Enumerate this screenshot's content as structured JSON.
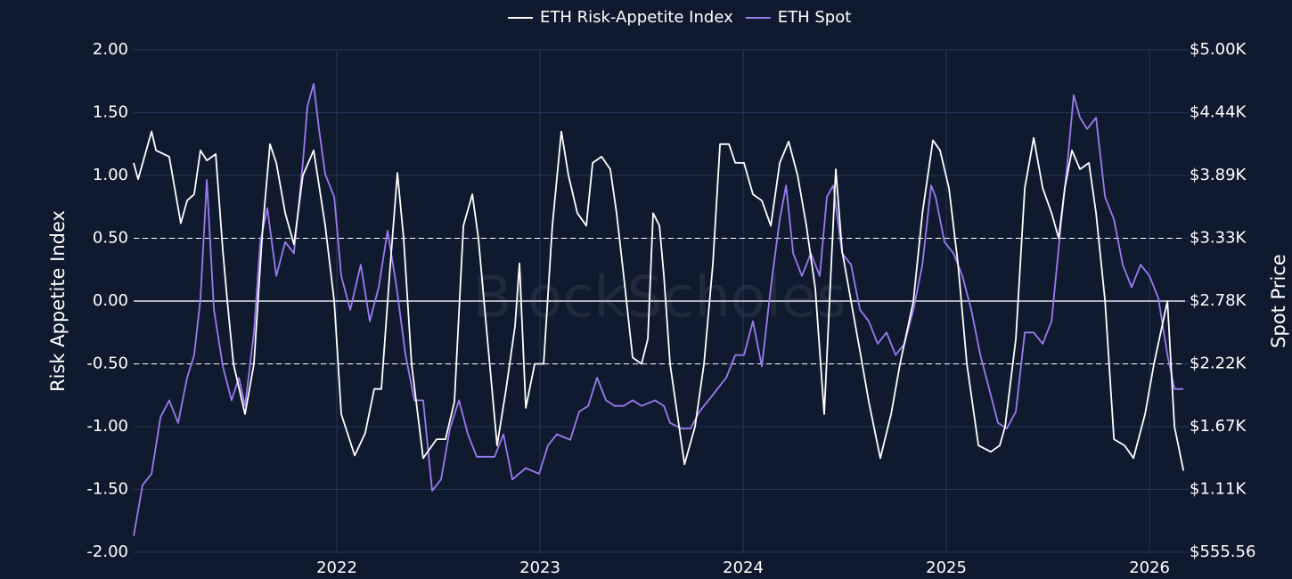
{
  "chart_data": {
    "type": "line",
    "watermark": "BlockScholes",
    "y_label": "Risk Appetite Index",
    "y2_label": "Spot Price",
    "legend": "upper center",
    "grid": true,
    "background": "#101a2e",
    "xlim": [
      2021.0,
      2026.175
    ],
    "xticks": [
      2022,
      2023,
      2024,
      2025,
      2026
    ],
    "ylim": [
      -2,
      2
    ],
    "yticks": [
      {
        "value": -2,
        "label": "-2.00"
      },
      {
        "value": -1.5,
        "label": "-1.50"
      },
      {
        "value": -1,
        "label": "-1.00"
      },
      {
        "value": -0.5,
        "label": "-0.50"
      },
      {
        "value": 0,
        "label": "0.00"
      },
      {
        "value": 0.5,
        "label": "0.50"
      },
      {
        "value": 1,
        "label": "1.00"
      },
      {
        "value": 1.5,
        "label": "1.50"
      },
      {
        "value": 2,
        "label": "2.00"
      }
    ],
    "y2lim": [
      555.56,
      5000
    ],
    "y2ticks": [
      {
        "value": 555.56,
        "label": "$555.56"
      },
      {
        "value": 1111.11,
        "label": "$1.11K"
      },
      {
        "value": 1666.67,
        "label": "$1.67K"
      },
      {
        "value": 2222.22,
        "label": "$2.22K"
      },
      {
        "value": 2777.78,
        "label": "$2.78K"
      },
      {
        "value": 3333.33,
        "label": "$3.33K"
      },
      {
        "value": 3888.89,
        "label": "$3.89K"
      },
      {
        "value": 4444.44,
        "label": "$4.44K"
      },
      {
        "value": 5000,
        "label": "$5.00K"
      }
    ],
    "hlines": [
      {
        "value": 0.5,
        "style": "dashed"
      },
      {
        "value": 0,
        "style": "solid"
      },
      {
        "value": -0.5,
        "style": "dashed"
      }
    ],
    "series": [
      {
        "name": "ETH Risk-Appetite Index",
        "color": "#ffffff",
        "x": [
          2021.0,
          2021.022,
          2021.088,
          2021.11,
          2021.175,
          2021.232,
          2021.263,
          2021.298,
          2021.329,
          2021.36,
          2021.404,
          2021.439,
          2021.461,
          2021.491,
          2021.548,
          2021.592,
          2021.636,
          2021.671,
          2021.702,
          2021.746,
          2021.789,
          2021.833,
          2021.886,
          2021.943,
          2021.987,
          2022.022,
          2022.088,
          2022.14,
          2022.184,
          2022.219,
          2022.259,
          2022.298,
          2022.329,
          2022.368,
          2022.425,
          2022.491,
          2022.535,
          2022.579,
          2022.623,
          2022.667,
          2022.697,
          2022.741,
          2022.789,
          2022.833,
          2022.877,
          2022.899,
          2022.93,
          2022.974,
          2023.018,
          2023.061,
          2023.105,
          2023.14,
          2023.184,
          2023.228,
          2023.259,
          2023.303,
          2023.346,
          2023.377,
          2023.412,
          2023.456,
          2023.5,
          2023.531,
          2023.557,
          2023.588,
          2023.61,
          2023.64,
          2023.711,
          2023.763,
          2023.807,
          2023.851,
          2023.886,
          2023.93,
          2023.961,
          2024.004,
          2024.048,
          2024.092,
          2024.136,
          2024.18,
          2024.224,
          2024.268,
          2024.311,
          2024.355,
          2024.399,
          2024.434,
          2024.456,
          2024.487,
          2024.531,
          2024.575,
          2024.618,
          2024.675,
          2024.728,
          2024.772,
          2024.838,
          2024.882,
          2024.934,
          2024.969,
          2025.013,
          2025.057,
          2025.101,
          2025.158,
          2025.219,
          2025.263,
          2025.289,
          2025.342,
          2025.386,
          2025.43,
          2025.474,
          2025.518,
          2025.553,
          2025.583,
          2025.618,
          2025.658,
          2025.702,
          2025.737,
          2025.781,
          2025.825,
          2025.877,
          2025.921,
          2025.978,
          2026.022,
          2026.088,
          2026.123,
          2026.167
        ],
        "values": [
          1.1,
          0.97,
          1.35,
          1.2,
          1.15,
          0.62,
          0.8,
          0.85,
          1.2,
          1.12,
          1.17,
          0.4,
          0.0,
          -0.5,
          -0.9,
          -0.5,
          0.6,
          1.25,
          1.1,
          0.7,
          0.45,
          1.0,
          1.2,
          0.6,
          0.0,
          -0.9,
          -1.23,
          -1.05,
          -0.7,
          -0.7,
          0.2,
          1.02,
          0.5,
          -0.5,
          -1.25,
          -1.1,
          -1.1,
          -0.8,
          0.6,
          0.85,
          0.5,
          -0.3,
          -1.15,
          -0.7,
          -0.2,
          0.3,
          -0.85,
          -0.5,
          -0.5,
          0.6,
          1.35,
          1.0,
          0.7,
          0.6,
          1.1,
          1.15,
          1.05,
          0.7,
          0.2,
          -0.45,
          -0.5,
          -0.3,
          0.7,
          0.6,
          0.2,
          -0.5,
          -1.3,
          -1.0,
          -0.5,
          0.3,
          1.25,
          1.25,
          1.1,
          1.1,
          0.85,
          0.8,
          0.6,
          1.1,
          1.27,
          1.0,
          0.6,
          0.1,
          -0.9,
          0.3,
          1.05,
          0.4,
          0.0,
          -0.4,
          -0.8,
          -1.25,
          -0.9,
          -0.5,
          0.0,
          0.7,
          1.28,
          1.2,
          0.9,
          0.3,
          -0.5,
          -1.15,
          -1.2,
          -1.15,
          -1.0,
          -0.3,
          0.9,
          1.3,
          0.9,
          0.7,
          0.5,
          0.9,
          1.2,
          1.05,
          1.1,
          0.7,
          0.0,
          -1.1,
          -1.15,
          -1.25,
          -0.9,
          -0.5,
          0.0,
          -1.0,
          -1.35
        ]
      },
      {
        "name": "ETH Spot",
        "color": "#9b7bf0",
        "axis": "y2",
        "x": [
          2021.0,
          2021.044,
          2021.088,
          2021.132,
          2021.175,
          2021.219,
          2021.263,
          2021.298,
          2021.329,
          2021.36,
          2021.395,
          2021.439,
          2021.482,
          2021.518,
          2021.548,
          2021.592,
          2021.623,
          2021.658,
          2021.702,
          2021.746,
          2021.789,
          2021.833,
          2021.855,
          2021.886,
          2021.912,
          2021.943,
          2021.987,
          2022.022,
          2022.066,
          2022.118,
          2022.162,
          2022.206,
          2022.25,
          2022.294,
          2022.338,
          2022.382,
          2022.425,
          2022.469,
          2022.513,
          2022.557,
          2022.601,
          2022.645,
          2022.689,
          2022.732,
          2022.776,
          2022.82,
          2022.864,
          2022.93,
          2022.996,
          2023.039,
          2023.083,
          2023.149,
          2023.193,
          2023.237,
          2023.281,
          2023.325,
          2023.368,
          2023.412,
          2023.456,
          2023.5,
          2023.566,
          2023.61,
          2023.64,
          2023.697,
          2023.741,
          2023.785,
          2023.829,
          2023.873,
          2023.917,
          2023.961,
          2024.004,
          2024.048,
          2024.092,
          2024.136,
          2024.18,
          2024.211,
          2024.246,
          2024.289,
          2024.333,
          2024.377,
          2024.412,
          2024.443,
          2024.487,
          2024.531,
          2024.575,
          2024.618,
          2024.662,
          2024.706,
          2024.75,
          2024.794,
          2024.838,
          2024.882,
          2024.925,
          2024.947,
          2024.991,
          2025.035,
          2025.079,
          2025.123,
          2025.167,
          2025.211,
          2025.254,
          2025.298,
          2025.342,
          2025.386,
          2025.43,
          2025.474,
          2025.518,
          2025.561,
          2025.596,
          2025.627,
          2025.658,
          2025.693,
          2025.737,
          2025.781,
          2025.825,
          2025.868,
          2025.912,
          2025.956,
          2026.0,
          2026.044,
          2026.088,
          2026.123,
          2026.167
        ],
        "values": [
          700,
          1150,
          1250,
          1750,
          1900,
          1700,
          2100,
          2300,
          2800,
          3850,
          2700,
          2200,
          1900,
          2100,
          1850,
          2500,
          3300,
          3600,
          3000,
          3300,
          3200,
          4000,
          4500,
          4700,
          4300,
          3900,
          3700,
          3000,
          2700,
          3100,
          2600,
          2900,
          3400,
          2900,
          2300,
          1900,
          1900,
          1100,
          1200,
          1650,
          1900,
          1600,
          1400,
          1400,
          1400,
          1600,
          1200,
          1300,
          1250,
          1500,
          1600,
          1550,
          1800,
          1850,
          2100,
          1900,
          1850,
          1850,
          1900,
          1850,
          1900,
          1850,
          1700,
          1650,
          1650,
          1800,
          1900,
          2000,
          2100,
          2300,
          2300,
          2600,
          2200,
          2900,
          3500,
          3800,
          3200,
          3000,
          3200,
          3000,
          3700,
          3800,
          3200,
          3100,
          2700,
          2600,
          2400,
          2500,
          2300,
          2400,
          2700,
          3100,
          3800,
          3700,
          3300,
          3200,
          3000,
          2700,
          2300,
          2000,
          1700,
          1650,
          1800,
          2500,
          2500,
          2400,
          2600,
          3400,
          4000,
          4600,
          4400,
          4300,
          4400,
          3700,
          3500,
          3100,
          2900,
          3100,
          3000,
          2800,
          2300,
          2000,
          2000
        ]
      }
    ]
  }
}
